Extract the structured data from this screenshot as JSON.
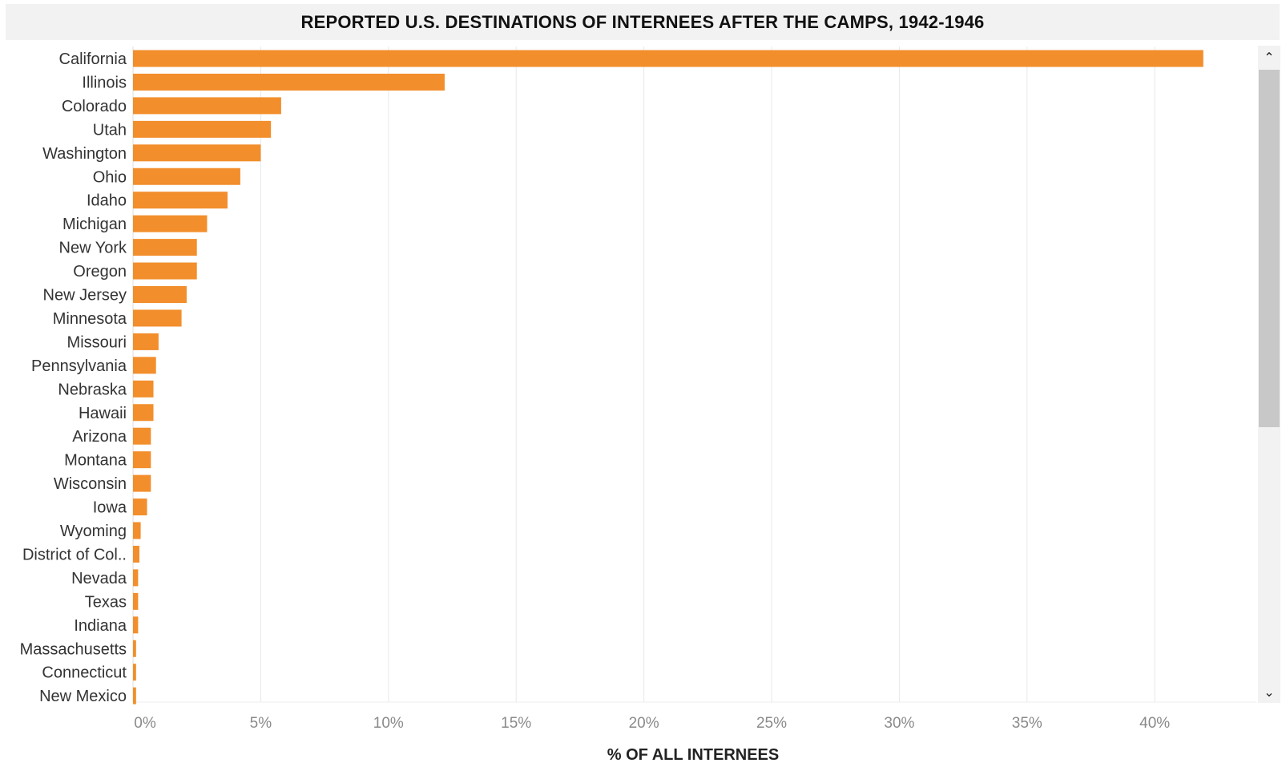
{
  "title": "REPORTED U.S. DESTINATIONS OF INTERNEES AFTER THE CAMPS, 1942-1946",
  "scrollbar": {
    "up_icon": "chevron-up-icon",
    "down_icon": "chevron-down-icon",
    "up_glyph": "⌃",
    "down_glyph": "⌄"
  },
  "chart_data": {
    "type": "bar",
    "orientation": "horizontal",
    "title": "REPORTED U.S. DESTINATIONS OF INTERNEES AFTER THE CAMPS, 1942-1946",
    "xlabel": "% OF ALL INTERNEES",
    "ylabel": "",
    "xlim": [
      0,
      43.5
    ],
    "x_ticks": [
      0,
      5,
      10,
      15,
      20,
      25,
      30,
      35,
      40
    ],
    "x_tick_labels": [
      "0%",
      "5%",
      "10%",
      "15%",
      "20%",
      "25%",
      "30%",
      "35%",
      "40%"
    ],
    "grid": "vertical",
    "bar_color": "#f28e2b",
    "categories": [
      "California",
      "Illinois",
      "Colorado",
      "Utah",
      "Washington",
      "Ohio",
      "Idaho",
      "Michigan",
      "New York",
      "Oregon",
      "New Jersey",
      "Minnesota",
      "Missouri",
      "Pennsylvania",
      "Nebraska",
      "Hawaii",
      "Arizona",
      "Montana",
      "Wisconsin",
      "Iowa",
      "Wyoming",
      "District of Col..",
      "Nevada",
      "Texas",
      "Indiana",
      "Massachusetts",
      "Connecticut",
      "New Mexico"
    ],
    "values": [
      41.9,
      12.2,
      5.8,
      5.4,
      5.0,
      4.2,
      3.7,
      2.9,
      2.5,
      2.5,
      2.1,
      1.9,
      1.0,
      0.9,
      0.8,
      0.8,
      0.7,
      0.7,
      0.7,
      0.55,
      0.3,
      0.25,
      0.2,
      0.2,
      0.2,
      0.12,
      0.12,
      0.12
    ]
  }
}
